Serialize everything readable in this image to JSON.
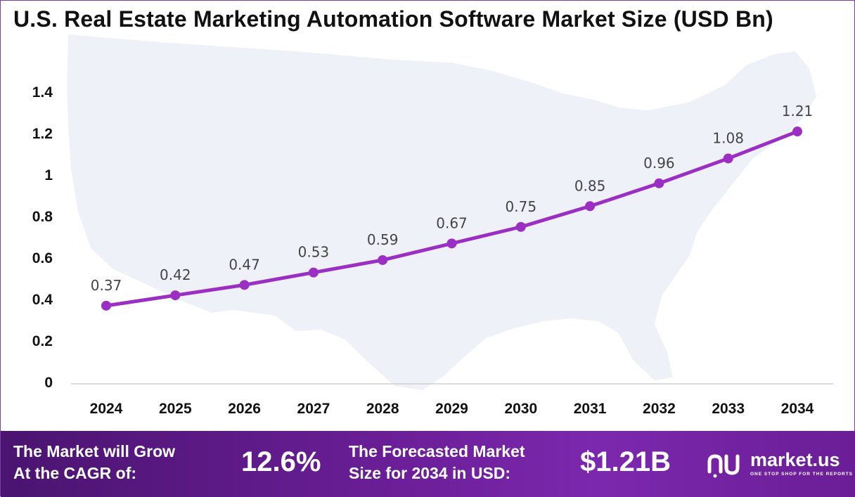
{
  "chart_data": {
    "type": "line",
    "title": "U.S. Real Estate Marketing Automation Software Market Size (USD Bn)",
    "x": [
      "2024",
      "2025",
      "2026",
      "2027",
      "2028",
      "2029",
      "2030",
      "2031",
      "2032",
      "2033",
      "2034"
    ],
    "series": [
      {
        "values": [
          0.37,
          0.42,
          0.47,
          0.53,
          0.59,
          0.67,
          0.75,
          0.85,
          0.96,
          1.08,
          1.21
        ],
        "labels": [
          "0.37",
          "0.42",
          "0.47",
          "0.53",
          "0.59",
          "0.67",
          "0.75",
          "0.85",
          "0.96",
          "1.08",
          "1.21"
        ]
      }
    ],
    "yticks": [
      "0",
      "0.2",
      "0.4",
      "0.6",
      "0.8",
      "1",
      "1.2",
      "1.4"
    ],
    "ylim": [
      0,
      1.4
    ],
    "grid": false,
    "line_color": "#9b2fc4",
    "background": "U.S. map silhouette"
  },
  "footer": {
    "cagr_text_1": "The Market will Grow",
    "cagr_text_2": "At the CAGR of:",
    "cagr_value": "12.6%",
    "forecast_text_1": "The Forecasted Market",
    "forecast_text_2": "Size for 2034 in USD:",
    "forecast_value": "$1.21B",
    "brand_name": "market.us",
    "brand_tagline": "ONE STOP SHOP FOR THE REPORTS",
    "brand_icon": "market-us-logo-icon"
  }
}
